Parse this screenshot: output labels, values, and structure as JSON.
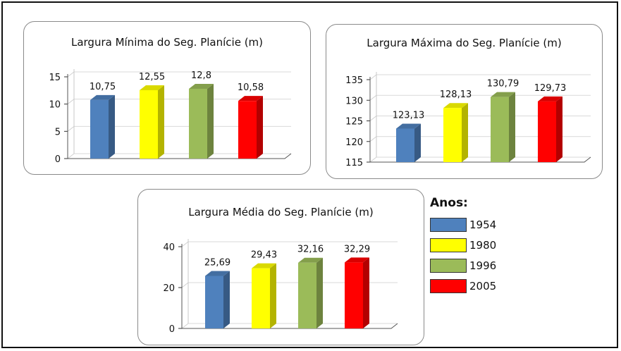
{
  "legend": {
    "title": "Anos:",
    "items": [
      {
        "label": "1954",
        "color": "#4f81bd"
      },
      {
        "label": "1980",
        "color": "#ffff00"
      },
      {
        "label": "1996",
        "color": "#9bbb59"
      },
      {
        "label": "2005",
        "color": "#ff0000"
      }
    ]
  },
  "chart_data": [
    {
      "type": "bar",
      "title": "Largura Mínima do Seg. Planície (m)",
      "categories": [
        "1954",
        "1980",
        "1996",
        "2005"
      ],
      "values": [
        10.75,
        12.55,
        12.8,
        10.58
      ],
      "value_labels": [
        "10,75",
        "12,55",
        "12,8",
        "10,58"
      ],
      "ylim": [
        0,
        15
      ],
      "yticks": [
        0,
        5,
        10,
        15
      ],
      "ytick_labels": [
        "0",
        "5",
        "10",
        "15"
      ],
      "grid": true
    },
    {
      "type": "bar",
      "title": "Largura Máxima do Seg. Planície (m)",
      "categories": [
        "1954",
        "1980",
        "1996",
        "2005"
      ],
      "values": [
        123.13,
        128.13,
        130.79,
        129.73
      ],
      "value_labels": [
        "123,13",
        "128,13",
        "130,79",
        "129,73"
      ],
      "ylim": [
        115,
        135
      ],
      "yticks": [
        115,
        120,
        125,
        130,
        135
      ],
      "ytick_labels": [
        "115",
        "120",
        "125",
        "130",
        "135"
      ],
      "grid": true
    },
    {
      "type": "bar",
      "title": "Largura Média do Seg. Planície (m)",
      "categories": [
        "1954",
        "1980",
        "1996",
        "2005"
      ],
      "values": [
        25.69,
        29.43,
        32.16,
        32.29
      ],
      "value_labels": [
        "25,69",
        "29,43",
        "32,16",
        "32,29"
      ],
      "ylim": [
        0,
        40
      ],
      "yticks": [
        0,
        20,
        40
      ],
      "ytick_labels": [
        "0",
        "20",
        "40"
      ],
      "grid": true
    }
  ]
}
